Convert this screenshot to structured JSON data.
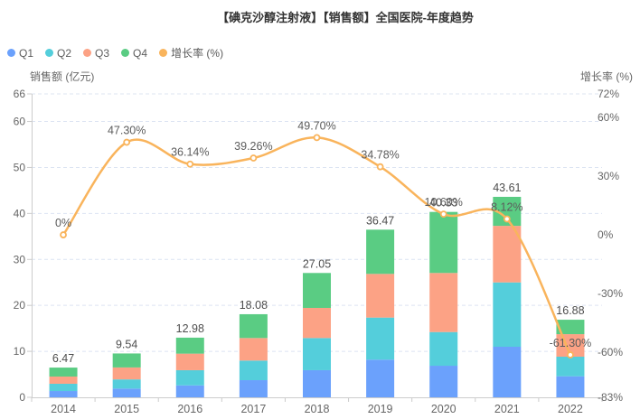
{
  "title": "【碘克沙醇注射液】【销售额】全国医院-年度趋势",
  "legend": [
    {
      "label": "Q1",
      "color": "#6BA1FC"
    },
    {
      "label": "Q2",
      "color": "#54CEDB"
    },
    {
      "label": "Q3",
      "color": "#FCA285"
    },
    {
      "label": "Q4",
      "color": "#5ACC83"
    },
    {
      "label": "增长率 (%)",
      "color": "#F9B45C"
    }
  ],
  "axes": {
    "left_title": "销售额 (亿元)",
    "right_title": "增长率 (%)",
    "left_ticks": [
      0,
      10,
      20,
      30,
      40,
      50,
      60,
      66
    ],
    "left_min": 0,
    "left_max": 66,
    "right_ticks": [
      {
        "value": 72,
        "label": "72%"
      },
      {
        "value": 60,
        "label": "60%"
      },
      {
        "value": 30,
        "label": "30%"
      },
      {
        "value": 0,
        "label": "0%"
      },
      {
        "value": -30,
        "label": "-30%"
      },
      {
        "value": -60,
        "label": "-60%"
      },
      {
        "value": -83,
        "label": "-83%"
      }
    ],
    "right_min": -83,
    "right_max": 72
  },
  "chart_data": {
    "type": "stacked-bar+line",
    "categories": [
      "2014",
      "2015",
      "2016",
      "2017",
      "2018",
      "2019",
      "2020",
      "2021",
      "2022"
    ],
    "series": [
      {
        "name": "Q1",
        "color": "#6BA1FC",
        "values": [
          1.37,
          1.9,
          2.6,
          3.73,
          5.9,
          8.2,
          6.87,
          11.0,
          4.58
        ]
      },
      {
        "name": "Q2",
        "color": "#54CEDB",
        "values": [
          1.58,
          2.0,
          3.3,
          4.27,
          7.0,
          9.15,
          7.33,
          14.0,
          4.26
        ]
      },
      {
        "name": "Q3",
        "color": "#FCA285",
        "values": [
          1.57,
          2.6,
          3.6,
          4.9,
          6.55,
          9.5,
          12.85,
          12.3,
          4.9
        ]
      },
      {
        "name": "Q4",
        "color": "#5ACC83",
        "values": [
          1.95,
          3.04,
          3.48,
          5.18,
          7.6,
          9.62,
          13.28,
          6.31,
          3.14
        ]
      }
    ],
    "totals": [
      6.47,
      9.54,
      12.98,
      18.08,
      27.05,
      36.47,
      40.33,
      43.61,
      16.88
    ],
    "total_labels": [
      "6.47",
      "9.54",
      "12.98",
      "18.08",
      "27.05",
      "36.47",
      "40.33",
      "43.61",
      "16.88"
    ],
    "line": {
      "name": "增长率 (%)",
      "color": "#F9B45C",
      "values": [
        0,
        47.3,
        36.14,
        39.26,
        49.7,
        34.78,
        10.6,
        8.12,
        -61.3
      ],
      "labels": [
        "0%",
        "47.30%",
        "36.14%",
        "39.26%",
        "49.70%",
        "34.78%",
        "10.60%",
        "8.12%",
        "-61.30%"
      ]
    },
    "title": "【碘克沙醇注射液】【销售额】全国医院-年度趋势",
    "xlabel": "",
    "ylabel_left": "销售额 (亿元)",
    "ylabel_right": "增长率 (%)",
    "ylim_left": [
      0,
      66
    ],
    "ylim_right": [
      -83,
      72
    ],
    "grid": "dashed-horizontal",
    "legend_position": "top-left"
  },
  "style_colors": {
    "title_text": "#333333",
    "axis_text": "#666666",
    "bar_label_text": "#4d4d4d",
    "line_label_text": "#5c5c5c",
    "axis_line": "#cccccc",
    "gridline": "#dce4f2",
    "background": "#ffffff"
  }
}
